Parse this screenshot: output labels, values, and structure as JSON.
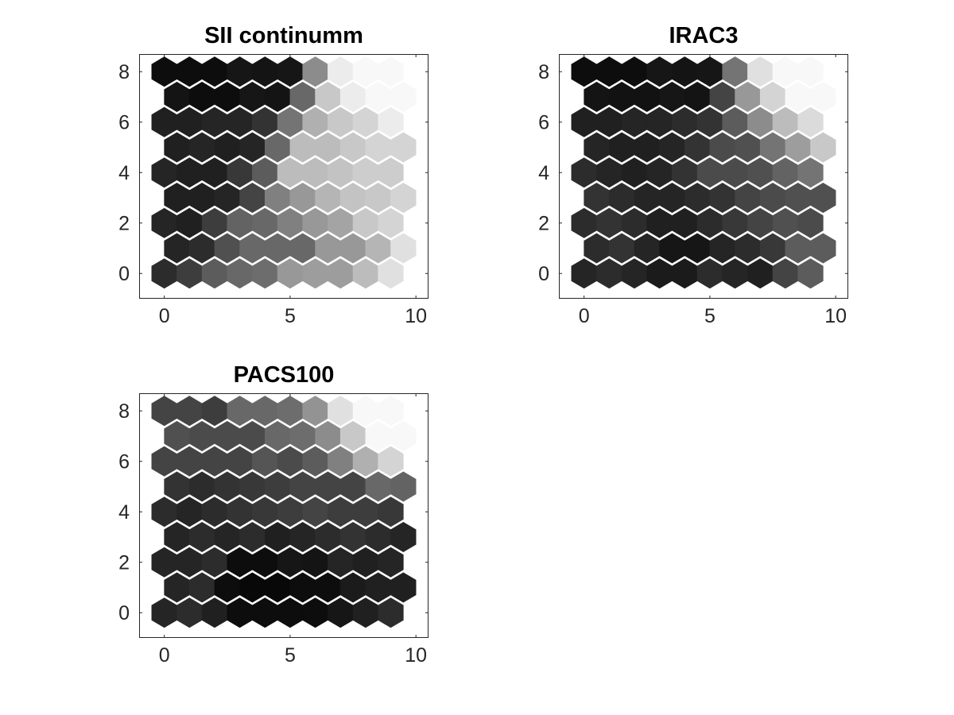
{
  "chart_data": [
    {
      "type": "heatmap",
      "title": "SII continumm",
      "xlabel": "",
      "ylabel": "",
      "xlim": [
        -1,
        10.5
      ],
      "ylim": [
        -1,
        8.7
      ],
      "xticks": [
        0,
        5,
        10
      ],
      "yticks": [
        0,
        2,
        4,
        6,
        8
      ],
      "grid": false,
      "colormap": "gray",
      "layout": "hexagonal",
      "cols": 10,
      "rows": 9,
      "odd_row_offset": 0.5,
      "values": [
        [
          0.15,
          0.22,
          0.35,
          0.4,
          0.42,
          0.6,
          0.62,
          0.62,
          0.75,
          0.9
        ],
        [
          0.12,
          0.15,
          0.3,
          0.4,
          0.4,
          0.4,
          0.6,
          0.6,
          0.72,
          0.9
        ],
        [
          0.12,
          0.1,
          0.22,
          0.38,
          0.4,
          0.5,
          0.6,
          0.65,
          0.8,
          0.85
        ],
        [
          0.1,
          0.1,
          0.12,
          0.25,
          0.5,
          0.6,
          0.72,
          0.78,
          0.8,
          0.85
        ],
        [
          0.12,
          0.1,
          0.1,
          0.2,
          0.35,
          0.75,
          0.75,
          0.78,
          0.82,
          0.82
        ],
        [
          0.1,
          0.12,
          0.1,
          0.12,
          0.4,
          0.75,
          0.75,
          0.8,
          0.85,
          0.85
        ],
        [
          0.1,
          0.1,
          0.12,
          0.12,
          0.18,
          0.45,
          0.7,
          0.8,
          0.85,
          0.95
        ],
        [
          0.05,
          0.02,
          0.02,
          0.06,
          0.05,
          0.4,
          0.8,
          0.95,
          1.0,
          1.0
        ],
        [
          0.02,
          0.02,
          0.02,
          0.06,
          0.05,
          0.06,
          0.55,
          0.95,
          1.0,
          1.0
        ]
      ]
    },
    {
      "type": "heatmap",
      "title": "IRAC3",
      "xlabel": "",
      "ylabel": "",
      "xlim": [
        -1,
        10.5
      ],
      "ylim": [
        -1,
        8.7
      ],
      "xticks": [
        0,
        5,
        10
      ],
      "yticks": [
        0,
        2,
        4,
        6,
        8
      ],
      "grid": false,
      "colormap": "gray",
      "layout": "hexagonal",
      "cols": 10,
      "rows": 9,
      "odd_row_offset": 0.5,
      "values": [
        [
          0.12,
          0.15,
          0.12,
          0.08,
          0.08,
          0.15,
          0.12,
          0.1,
          0.25,
          0.35
        ],
        [
          0.15,
          0.18,
          0.12,
          0.06,
          0.06,
          0.12,
          0.15,
          0.2,
          0.35,
          0.35
        ],
        [
          0.15,
          0.18,
          0.15,
          0.1,
          0.1,
          0.15,
          0.2,
          0.25,
          0.3,
          0.28
        ],
        [
          0.18,
          0.15,
          0.12,
          0.12,
          0.15,
          0.18,
          0.25,
          0.28,
          0.3,
          0.3
        ],
        [
          0.15,
          0.12,
          0.1,
          0.12,
          0.18,
          0.28,
          0.28,
          0.3,
          0.38,
          0.45
        ],
        [
          0.12,
          0.1,
          0.1,
          0.12,
          0.18,
          0.28,
          0.3,
          0.45,
          0.62,
          0.8
        ],
        [
          0.1,
          0.1,
          0.12,
          0.12,
          0.15,
          0.18,
          0.35,
          0.55,
          0.75,
          0.88
        ],
        [
          0.05,
          0.04,
          0.04,
          0.06,
          0.05,
          0.25,
          0.6,
          0.85,
          1.0,
          1.0
        ],
        [
          0.02,
          0.02,
          0.02,
          0.06,
          0.05,
          0.06,
          0.45,
          0.9,
          1.0,
          1.0
        ]
      ]
    },
    {
      "type": "heatmap",
      "title": "PACS100",
      "xlabel": "",
      "ylabel": "",
      "xlim": [
        -1,
        10.5
      ],
      "ylim": [
        -1,
        8.7
      ],
      "xticks": [
        0,
        5,
        10
      ],
      "yticks": [
        0,
        2,
        4,
        6,
        8
      ],
      "grid": false,
      "colormap": "gray",
      "layout": "hexagonal",
      "cols": 10,
      "rows": 9,
      "odd_row_offset": 0.5,
      "values": [
        [
          0.12,
          0.15,
          0.1,
          0.02,
          0.02,
          0.02,
          0.02,
          0.06,
          0.1,
          0.15
        ],
        [
          0.12,
          0.15,
          0.02,
          0.0,
          0.0,
          0.02,
          0.02,
          0.08,
          0.1,
          0.1
        ],
        [
          0.12,
          0.12,
          0.15,
          0.02,
          0.02,
          0.06,
          0.05,
          0.12,
          0.1,
          0.12
        ],
        [
          0.12,
          0.15,
          0.12,
          0.15,
          0.1,
          0.12,
          0.15,
          0.18,
          0.15,
          0.12
        ],
        [
          0.15,
          0.12,
          0.15,
          0.18,
          0.2,
          0.22,
          0.25,
          0.22,
          0.22,
          0.2
        ],
        [
          0.18,
          0.15,
          0.18,
          0.2,
          0.22,
          0.25,
          0.25,
          0.25,
          0.4,
          0.38
        ],
        [
          0.25,
          0.25,
          0.25,
          0.25,
          0.32,
          0.28,
          0.35,
          0.5,
          0.7,
          0.85
        ],
        [
          0.3,
          0.28,
          0.28,
          0.28,
          0.4,
          0.42,
          0.55,
          0.8,
          1.0,
          1.0
        ],
        [
          0.25,
          0.25,
          0.22,
          0.4,
          0.4,
          0.42,
          0.58,
          0.9,
          1.0,
          1.0
        ]
      ]
    }
  ]
}
